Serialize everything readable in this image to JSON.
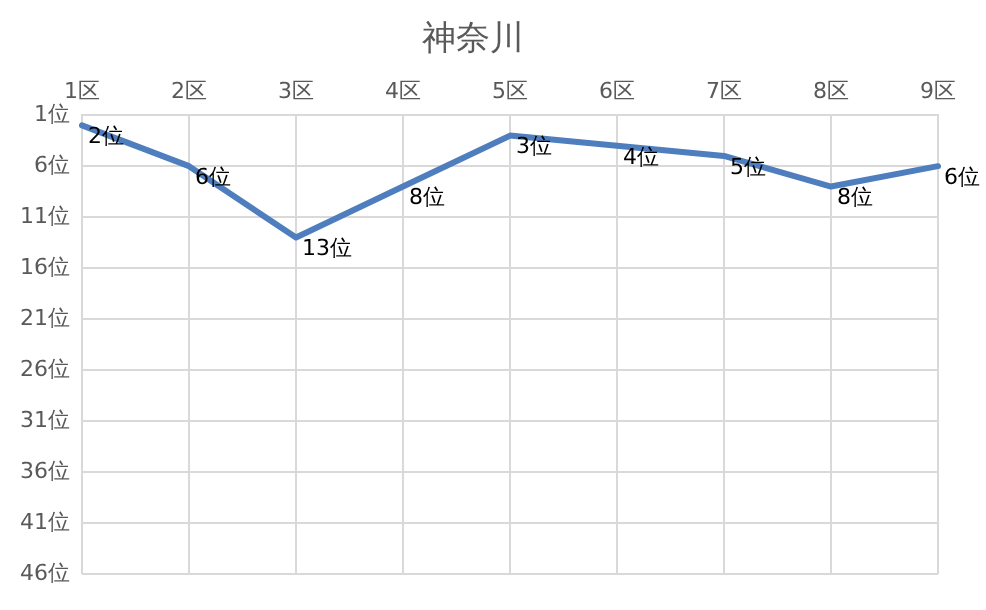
{
  "chart_data": {
    "type": "line",
    "title": "神奈川",
    "categories": [
      "1区",
      "2区",
      "3区",
      "4区",
      "5区",
      "6区",
      "7区",
      "8区",
      "9区"
    ],
    "series": [
      {
        "color": "#4e7ebe",
        "values": [
          2,
          6,
          13,
          8,
          3,
          4,
          5,
          8,
          6
        ],
        "value_labels": [
          "2位",
          "6位",
          "13位",
          "8位",
          "3位",
          "4位",
          "5位",
          "8位",
          "6位"
        ]
      }
    ],
    "ylim": [
      46,
      1
    ],
    "yticks": [
      {
        "value": 1,
        "label": "1位"
      },
      {
        "value": 6,
        "label": "6位"
      },
      {
        "value": 11,
        "label": "11位"
      },
      {
        "value": 16,
        "label": "16位"
      },
      {
        "value": 21,
        "label": "21位"
      },
      {
        "value": 26,
        "label": "26位"
      },
      {
        "value": 31,
        "label": "31位"
      },
      {
        "value": 36,
        "label": "36位"
      },
      {
        "value": 41,
        "label": "41位"
      },
      {
        "value": 46,
        "label": "46位"
      }
    ],
    "grid": true,
    "legend": false,
    "marker": "none",
    "line_style": "solid"
  }
}
